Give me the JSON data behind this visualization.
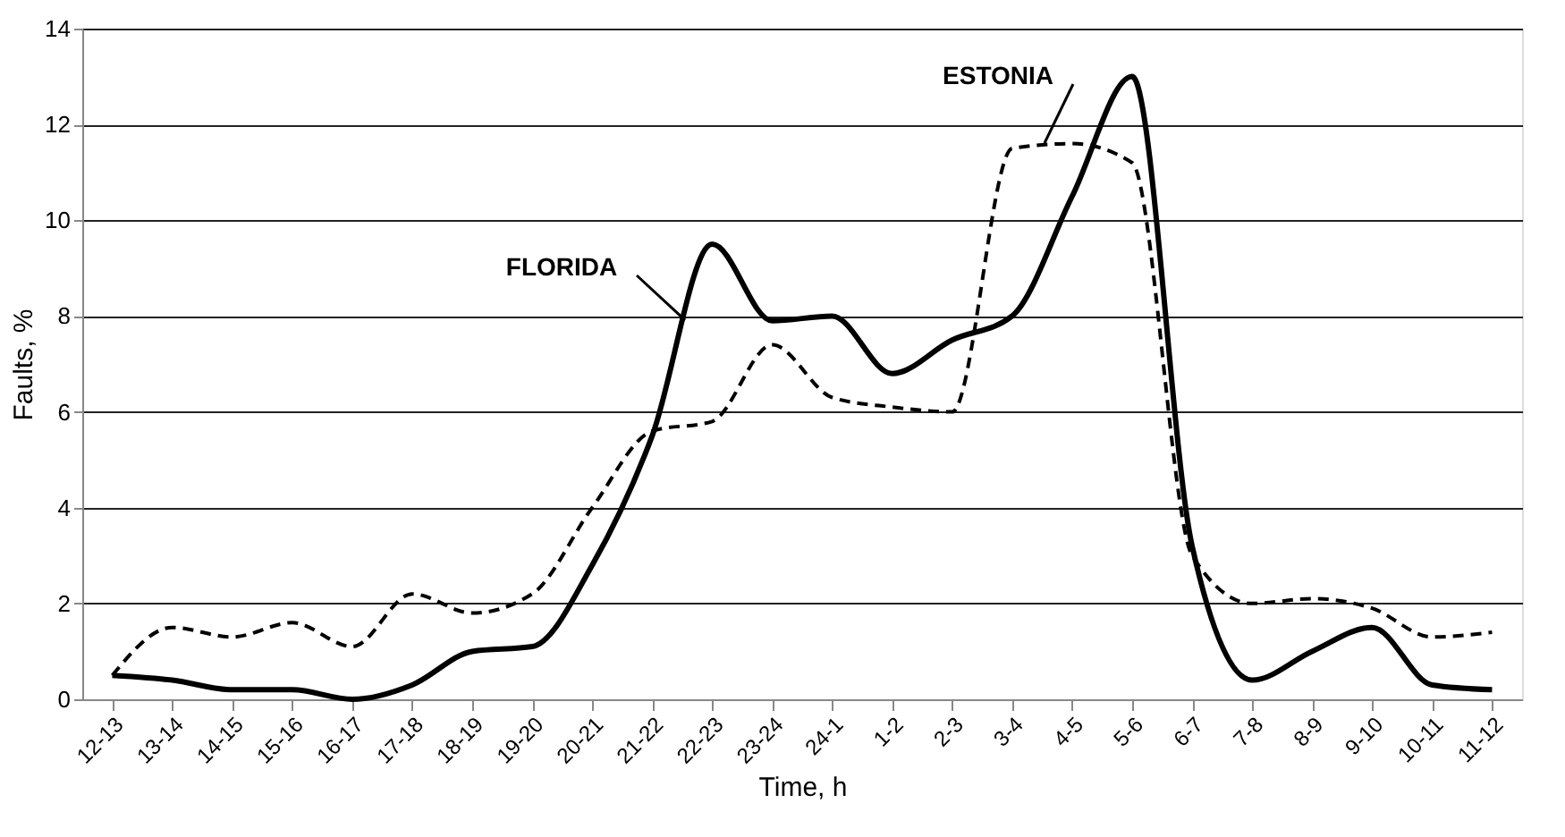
{
  "chart_data": {
    "type": "line",
    "xlabel": "Time, h",
    "ylabel": "Faults, %",
    "categories": [
      "12-13",
      "13-14",
      "14-15",
      "15-16",
      "16-17",
      "17-18",
      "18-19",
      "19-20",
      "20-21",
      "21-22",
      "22-23",
      "23-24",
      "24-1",
      "1-2",
      "2-3",
      "3-4",
      "4-5",
      "5-6",
      "6-7",
      "7-8",
      "8-9",
      "9-10",
      "10-11",
      "11-12"
    ],
    "series": [
      {
        "name": "FLORIDA",
        "color": "#000000",
        "line_style": "solid",
        "values": [
          0.5,
          0.4,
          0.2,
          0.2,
          0.0,
          0.3,
          1.0,
          1.1,
          2.8,
          5.5,
          9.5,
          7.9,
          8.0,
          6.8,
          7.5,
          8.0,
          10.5,
          13.0,
          3.2,
          0.4,
          1.0,
          1.5,
          0.3,
          0.2
        ]
      },
      {
        "name": "ESTONIA",
        "color": "#000000",
        "line_style": "dashed",
        "values": [
          0.5,
          1.5,
          1.3,
          1.6,
          1.1,
          2.2,
          1.8,
          2.2,
          4.0,
          5.6,
          5.8,
          7.4,
          6.3,
          6.1,
          6.0,
          11.5,
          11.6,
          11.2,
          3.0,
          2.0,
          2.1,
          1.9,
          1.3,
          1.4
        ]
      }
    ],
    "ylim": [
      0,
      14
    ],
    "yticks": [
      0,
      2,
      4,
      6,
      8,
      10,
      12,
      14
    ],
    "grid": "y",
    "legend": false,
    "marker": "none"
  }
}
